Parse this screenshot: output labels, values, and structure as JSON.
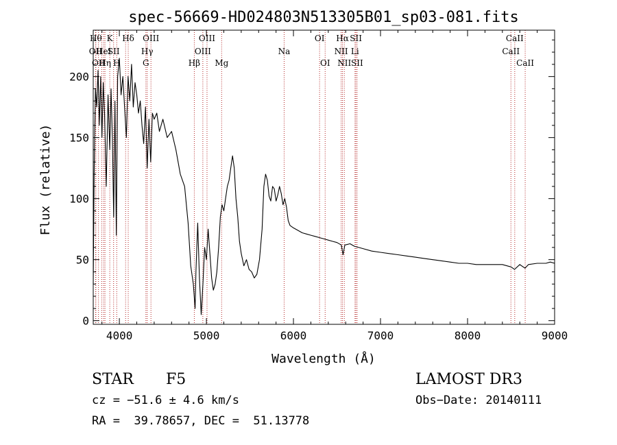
{
  "chart_data": {
    "type": "line",
    "title": "spec-56669-HD024803N513305B01_sp03-081.fits",
    "xlabel": "Wavelength (Å)",
    "ylabel": "Flux (relative)",
    "xlim": [
      3700,
      9000
    ],
    "ylim": [
      -3,
      238
    ],
    "x_ticks": [
      4000,
      5000,
      6000,
      7000,
      8000,
      9000
    ],
    "x_tick_labels": [
      "4000",
      "5000",
      "6000",
      "7000",
      "8000",
      "9000"
    ],
    "y_ticks": [
      0,
      50,
      100,
      150,
      200
    ],
    "y_tick_labels": [
      "0",
      "50",
      "100",
      "150",
      "200"
    ],
    "line_color": "#000000",
    "marker_color": "#b22222",
    "series": [
      {
        "points": [
          [
            3700,
            30
          ],
          [
            3710,
            120
          ],
          [
            3725,
            190
          ],
          [
            3740,
            175
          ],
          [
            3755,
            205
          ],
          [
            3770,
            160
          ],
          [
            3785,
            200
          ],
          [
            3800,
            150
          ],
          [
            3815,
            195
          ],
          [
            3830,
            170
          ],
          [
            3850,
            110
          ],
          [
            3870,
            185
          ],
          [
            3890,
            140
          ],
          [
            3905,
            190
          ],
          [
            3920,
            150
          ],
          [
            3935,
            85
          ],
          [
            3950,
            180
          ],
          [
            3965,
            70
          ],
          [
            3980,
            200
          ],
          [
            4000,
            215
          ],
          [
            4020,
            185
          ],
          [
            4040,
            200
          ],
          [
            4060,
            175
          ],
          [
            4080,
            150
          ],
          [
            4100,
            200
          ],
          [
            4120,
            180
          ],
          [
            4140,
            210
          ],
          [
            4160,
            175
          ],
          [
            4180,
            195
          ],
          [
            4200,
            185
          ],
          [
            4220,
            170
          ],
          [
            4240,
            180
          ],
          [
            4260,
            160
          ],
          [
            4280,
            145
          ],
          [
            4300,
            175
          ],
          [
            4320,
            125
          ],
          [
            4340,
            165
          ],
          [
            4360,
            130
          ],
          [
            4380,
            170
          ],
          [
            4400,
            165
          ],
          [
            4430,
            170
          ],
          [
            4460,
            155
          ],
          [
            4500,
            165
          ],
          [
            4550,
            150
          ],
          [
            4600,
            155
          ],
          [
            4650,
            140
          ],
          [
            4700,
            120
          ],
          [
            4750,
            110
          ],
          [
            4790,
            80
          ],
          [
            4820,
            45
          ],
          [
            4850,
            30
          ],
          [
            4870,
            10
          ],
          [
            4880,
            40
          ],
          [
            4900,
            80
          ],
          [
            4920,
            35
          ],
          [
            4940,
            5
          ],
          [
            4960,
            30
          ],
          [
            4980,
            60
          ],
          [
            5000,
            50
          ],
          [
            5020,
            75
          ],
          [
            5040,
            55
          ],
          [
            5060,
            35
          ],
          [
            5080,
            25
          ],
          [
            5100,
            30
          ],
          [
            5120,
            40
          ],
          [
            5140,
            60
          ],
          [
            5160,
            85
          ],
          [
            5180,
            95
          ],
          [
            5200,
            90
          ],
          [
            5220,
            100
          ],
          [
            5240,
            110
          ],
          [
            5260,
            115
          ],
          [
            5280,
            125
          ],
          [
            5300,
            135
          ],
          [
            5320,
            125
          ],
          [
            5340,
            100
          ],
          [
            5360,
            85
          ],
          [
            5380,
            65
          ],
          [
            5400,
            55
          ],
          [
            5430,
            45
          ],
          [
            5460,
            50
          ],
          [
            5490,
            42
          ],
          [
            5520,
            40
          ],
          [
            5550,
            35
          ],
          [
            5580,
            38
          ],
          [
            5610,
            50
          ],
          [
            5640,
            75
          ],
          [
            5660,
            110
          ],
          [
            5680,
            120
          ],
          [
            5700,
            115
          ],
          [
            5720,
            102
          ],
          [
            5740,
            98
          ],
          [
            5760,
            110
          ],
          [
            5780,
            108
          ],
          [
            5800,
            98
          ],
          [
            5820,
            103
          ],
          [
            5840,
            110
          ],
          [
            5860,
            104
          ],
          [
            5880,
            95
          ],
          [
            5900,
            100
          ],
          [
            5920,
            93
          ],
          [
            5940,
            82
          ],
          [
            5960,
            78
          ],
          [
            6000,
            76
          ],
          [
            6050,
            74
          ],
          [
            6100,
            72
          ],
          [
            6150,
            71
          ],
          [
            6200,
            70
          ],
          [
            6250,
            69
          ],
          [
            6300,
            68
          ],
          [
            6350,
            67
          ],
          [
            6400,
            66
          ],
          [
            6450,
            65
          ],
          [
            6500,
            64
          ],
          [
            6550,
            62
          ],
          [
            6570,
            54
          ],
          [
            6590,
            62
          ],
          [
            6650,
            63
          ],
          [
            6700,
            61
          ],
          [
            6800,
            59
          ],
          [
            6900,
            57
          ],
          [
            7000,
            56
          ],
          [
            7100,
            55
          ],
          [
            7200,
            54
          ],
          [
            7300,
            53
          ],
          [
            7400,
            52
          ],
          [
            7500,
            51
          ],
          [
            7600,
            50
          ],
          [
            7700,
            49
          ],
          [
            7800,
            48
          ],
          [
            7900,
            47
          ],
          [
            8000,
            47
          ],
          [
            8100,
            46
          ],
          [
            8200,
            46
          ],
          [
            8300,
            46
          ],
          [
            8400,
            46
          ],
          [
            8500,
            44
          ],
          [
            8540,
            42
          ],
          [
            8600,
            46
          ],
          [
            8660,
            43
          ],
          [
            8700,
            46
          ],
          [
            8800,
            47
          ],
          [
            8900,
            47
          ],
          [
            8950,
            48
          ],
          [
            9000,
            47
          ]
        ]
      }
    ],
    "line_markers": [
      {
        "x": 3727,
        "row": 1,
        "label": "OII"
      },
      {
        "x": 3730,
        "row": 0,
        "label": "Hθ"
      },
      {
        "x": 3760,
        "row": 2,
        "label": "OII"
      },
      {
        "x": 3798,
        "row": 0,
        "label": ""
      },
      {
        "x": 3820,
        "row": 1,
        "label": "HeI"
      },
      {
        "x": 3835,
        "row": 2,
        "label": "Hη"
      },
      {
        "x": 3890,
        "row": 0,
        "label": "K"
      },
      {
        "x": 3934,
        "row": 1,
        "label": "SII"
      },
      {
        "x": 3970,
        "row": 2,
        "label": "H"
      },
      {
        "x": 4072,
        "row": 0,
        "label": ""
      },
      {
        "x": 4102,
        "row": 0,
        "label": "Hδ"
      },
      {
        "x": 4305,
        "row": 2,
        "label": "G"
      },
      {
        "x": 4320,
        "row": 1,
        "label": "Hγ"
      },
      {
        "x": 4363,
        "row": 0,
        "label": "OIII"
      },
      {
        "x": 4861,
        "row": 2,
        "label": "Hβ"
      },
      {
        "x": 4959,
        "row": 1,
        "label": "OIII"
      },
      {
        "x": 5007,
        "row": 0,
        "label": "OIII"
      },
      {
        "x": 5175,
        "row": 2,
        "label": "Mg"
      },
      {
        "x": 5893,
        "row": 1,
        "label": "Na"
      },
      {
        "x": 6300,
        "row": 0,
        "label": "OI"
      },
      {
        "x": 6364,
        "row": 2,
        "label": "OI"
      },
      {
        "x": 6548,
        "row": 1,
        "label": "NII"
      },
      {
        "x": 6563,
        "row": 0,
        "label": "Hα"
      },
      {
        "x": 6584,
        "row": 2,
        "label": "NII"
      },
      {
        "x": 6707,
        "row": 1,
        "label": "Li"
      },
      {
        "x": 6717,
        "row": 0,
        "label": "SII"
      },
      {
        "x": 6731,
        "row": 2,
        "label": "SII"
      },
      {
        "x": 8498,
        "row": 1,
        "label": "CaII"
      },
      {
        "x": 8542,
        "row": 0,
        "label": "CaII"
      },
      {
        "x": 8662,
        "row": 2,
        "label": "CaII"
      }
    ]
  },
  "info": {
    "class_label": "STAR",
    "subclass": "F5",
    "survey": "LAMOST DR3",
    "cz": "cz = −51.6 ± 4.6 km/s",
    "obs_date": "Obs−Date: 20140111",
    "radec": "RA =  39.78657, DEC =  51.13778"
  }
}
